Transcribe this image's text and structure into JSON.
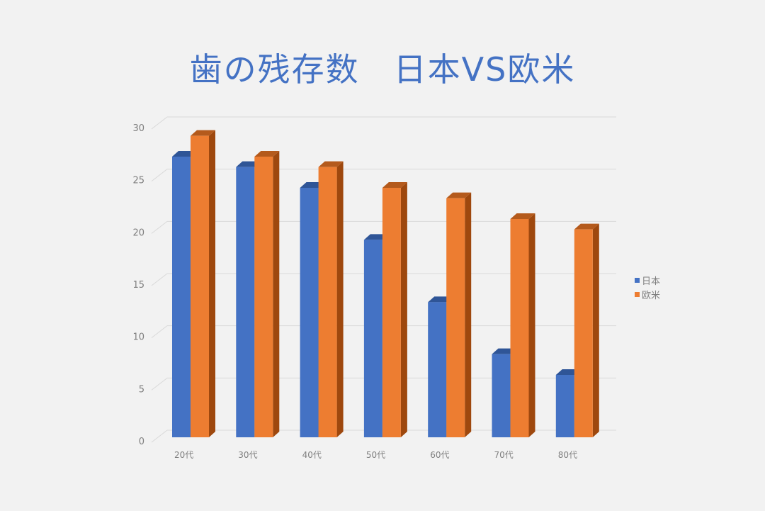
{
  "chart_data": {
    "type": "bar",
    "style": "3d-clustered-column",
    "title": "歯の残存数　日本VS欧米",
    "xlabel": "",
    "ylabel": "",
    "categories": [
      "20代",
      "30代",
      "40代",
      "50代",
      "60代",
      "70代",
      "80代"
    ],
    "series": [
      {
        "name": "日本",
        "color": "#4472c4",
        "values": [
          27,
          26,
          24,
          19,
          13,
          8,
          6
        ]
      },
      {
        "name": "欧米",
        "color": "#ed7d31",
        "values": [
          29,
          27,
          26,
          24,
          23,
          21,
          20
        ]
      }
    ],
    "ylim": [
      0,
      30
    ],
    "yticks": [
      0,
      5,
      10,
      15,
      20,
      25,
      30
    ],
    "grid": true,
    "legend_position": "right"
  },
  "colors": {
    "background": "#f2f2f2",
    "title": "#4472c4",
    "japan_front": "#4472c4",
    "japan_top": "#2f5597",
    "west_front": "#ed7d31",
    "west_side": "#9e480e",
    "west_top": "#b45a1c",
    "gridline": "#d9d9d9",
    "tick_text": "#7f7f7f"
  },
  "legend": {
    "items": [
      {
        "label": "日本",
        "color": "#4472c4"
      },
      {
        "label": "欧米",
        "color": "#ed7d31"
      }
    ]
  }
}
